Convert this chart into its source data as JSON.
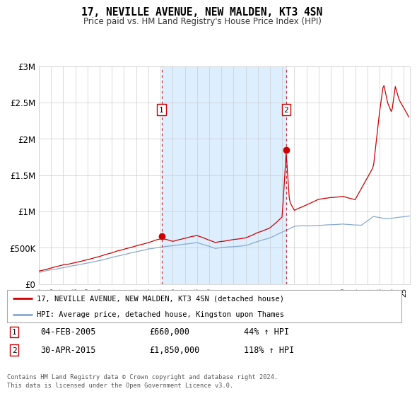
{
  "title": "17, NEVILLE AVENUE, NEW MALDEN, KT3 4SN",
  "subtitle": "Price paid vs. HM Land Registry's House Price Index (HPI)",
  "background_color": "#ffffff",
  "plot_bg_color": "#ffffff",
  "grid_color": "#cccccc",
  "shaded_region_color": "#ddeeff",
  "red_line_color": "#cc0000",
  "blue_line_color": "#88aacc",
  "sale1_x": 2005.08,
  "sale1_y": 660000,
  "sale1_label": "1",
  "sale1_date": "04-FEB-2005",
  "sale1_price": "£660,000",
  "sale1_hpi": "44% ↑ HPI",
  "sale2_x": 2015.33,
  "sale2_y": 1850000,
  "sale2_label": "2",
  "sale2_date": "30-APR-2015",
  "sale2_price": "£1,850,000",
  "sale2_hpi": "118% ↑ HPI",
  "xmin": 1995,
  "xmax": 2025.5,
  "ymin": 0,
  "ymax": 3000000,
  "yticks": [
    0,
    500000,
    1000000,
    1500000,
    2000000,
    2500000,
    3000000
  ],
  "ytick_labels": [
    "£0",
    "£500K",
    "£1M",
    "£1.5M",
    "£2M",
    "£2.5M",
    "£3M"
  ],
  "xticks": [
    1995,
    1996,
    1997,
    1998,
    1999,
    2000,
    2001,
    2002,
    2003,
    2004,
    2005,
    2006,
    2007,
    2008,
    2009,
    2010,
    2011,
    2012,
    2013,
    2014,
    2015,
    2016,
    2017,
    2018,
    2019,
    2020,
    2021,
    2022,
    2023,
    2024,
    2025
  ],
  "legend_line1": "17, NEVILLE AVENUE, NEW MALDEN, KT3 4SN (detached house)",
  "legend_line2": "HPI: Average price, detached house, Kingston upon Thames",
  "footer1": "Contains HM Land Registry data © Crown copyright and database right 2024.",
  "footer2": "This data is licensed under the Open Government Licence v3.0."
}
